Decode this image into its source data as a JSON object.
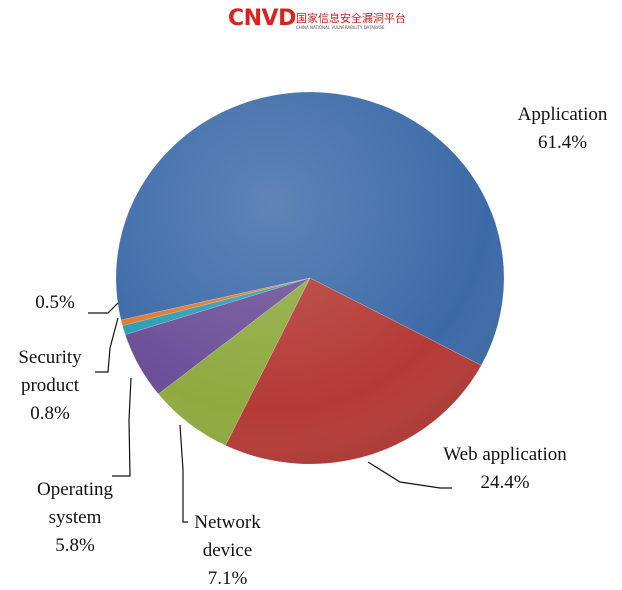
{
  "logo": {
    "mark": "CNVD",
    "name": "国家信息安全漏洞平台",
    "subtitle": "CHINA NATIONAL VULNERABILITY DATABASE"
  },
  "chart_data": {
    "type": "pie",
    "categories": [
      "Application",
      "Web application",
      "Network device",
      "Operating system",
      "Security product",
      null
    ],
    "values": [
      61.4,
      24.4,
      7.1,
      5.8,
      0.8,
      0.5
    ],
    "value_labels": [
      "61.4%",
      "24.4%",
      "7.1%",
      "5.8%",
      "0.8%",
      "0.5%"
    ],
    "colors": [
      "#3c6aa8",
      "#b53a36",
      "#8eaa3f",
      "#6b4f98",
      "#2f9db6",
      "#df7a2c"
    ]
  }
}
